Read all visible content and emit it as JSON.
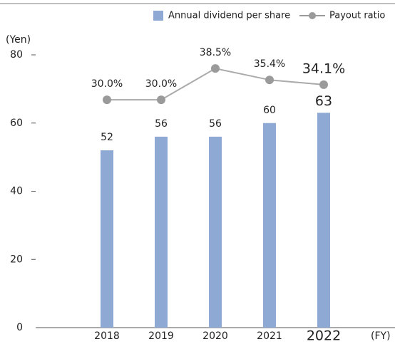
{
  "chart_data": {
    "type": "bar_line",
    "y_label": "(Yen)",
    "x_label": "(FY)",
    "categories": [
      "2018",
      "2019",
      "2020",
      "2021",
      "2022"
    ],
    "ylim": [
      0,
      80
    ],
    "yticks": [
      0,
      20,
      40,
      60,
      80
    ],
    "y2lim": [
      -31.8,
      42.2
    ],
    "series": [
      {
        "name": "Annual dividend per share",
        "color": "#8eaad4",
        "values": [
          52,
          56,
          56,
          60,
          63
        ]
      },
      {
        "name": "Payout ratio",
        "color": "#9a9a9a",
        "axis": "y2",
        "values": [
          30.0,
          30.0,
          38.5,
          35.4,
          34.1
        ],
        "value_labels": [
          "30.0%",
          "30.0%",
          "38.5%",
          "35.4%",
          "34.1%"
        ]
      }
    ]
  }
}
